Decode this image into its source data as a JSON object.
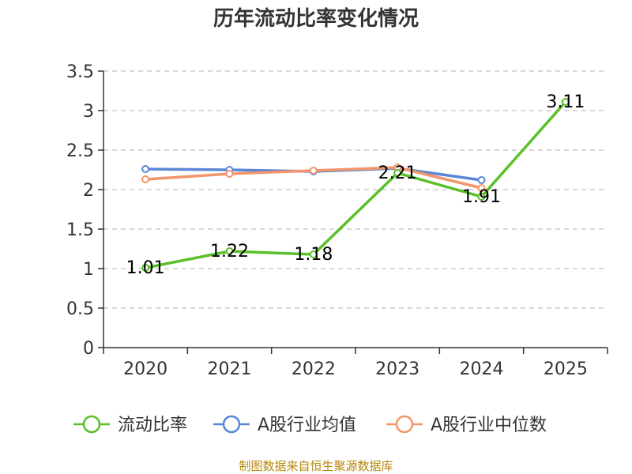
{
  "chart_data": {
    "type": "line",
    "title": "历年流动比率变化情况",
    "categories": [
      "2020",
      "2021",
      "2022",
      "2023",
      "2024",
      "2025"
    ],
    "ylim": [
      0,
      3.5
    ],
    "yticks": [
      "0",
      "0.5",
      "1",
      "1.5",
      "2",
      "2.5",
      "3",
      "3.5"
    ],
    "grid": true,
    "legend_position": "bottom",
    "series": [
      {
        "name": "流动比率",
        "color": "#5bbf2a",
        "values": [
          1.01,
          1.22,
          1.18,
          2.21,
          1.91,
          3.11
        ],
        "labels": [
          "1.01",
          "1.22",
          "1.18",
          "2.21",
          "1.91",
          "3.11"
        ]
      },
      {
        "name": "A股行业均值",
        "color": "#5b86d6",
        "values": [
          2.26,
          2.25,
          2.23,
          2.27,
          2.12,
          null
        ]
      },
      {
        "name": "A股行业中位数",
        "color": "#f2956a",
        "values": [
          2.13,
          2.2,
          2.24,
          2.28,
          2.02,
          null
        ]
      }
    ]
  },
  "footer": {
    "source": "制图数据来自恒生聚源数据库"
  }
}
